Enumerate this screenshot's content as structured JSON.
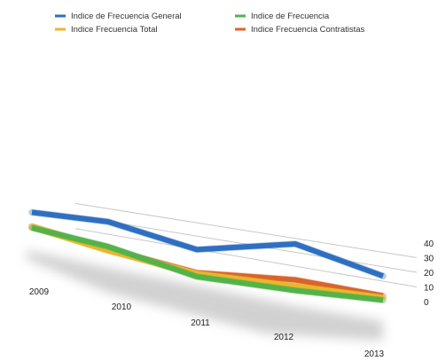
{
  "chart_data": {
    "type": "line",
    "title": "",
    "xlabel": "",
    "ylabel": "",
    "ylim": [
      0,
      40
    ],
    "y_ticks": [
      "0",
      "10",
      "20",
      "30",
      "40"
    ],
    "categories": [
      "2009",
      "2010",
      "2011",
      "2012",
      "2013"
    ],
    "grid": true,
    "legend_position": "top",
    "series": [
      {
        "name": "Indice de Frecuencia General",
        "color": "#2f6fc1",
        "values": [
          36,
          40,
          28,
          38,
          18
        ]
      },
      {
        "name": "Indice de Frecuencia",
        "color": "#53b34a",
        "values": [
          23,
          20,
          7,
          3,
          1
        ]
      },
      {
        "name": "Indice Frecuencia Total",
        "color": "#e8b62c",
        "values": [
          24,
          17,
          9,
          6,
          2.5
        ]
      },
      {
        "name": "Indice Frecuencia Contratistas",
        "color": "#d9642a",
        "values": [
          24,
          18,
          10,
          11,
          4
        ]
      }
    ]
  }
}
